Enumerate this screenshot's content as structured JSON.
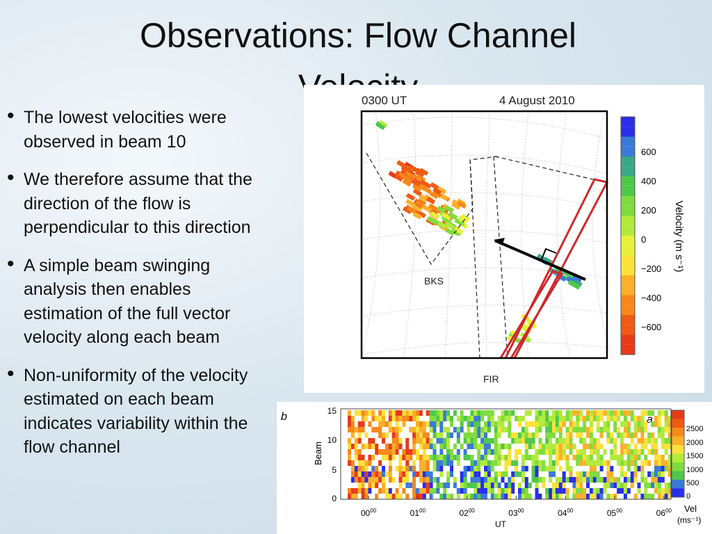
{
  "title": "Observations: Flow Channel Velocity",
  "bullets": [
    "The lowest velocities were observed in beam 10",
    "We therefore assume that the direction of the flow is perpendicular to this direction",
    "A simple beam swinging analysis then enables estimation of the full vector velocity along each beam",
    "Non-uniformity of the velocity estimated on each beam indicates variability within the flow channel"
  ],
  "map_figure": {
    "time": "0300 UT",
    "date": "4 August 2010",
    "station_labels": [
      "BKS",
      "FIR"
    ],
    "colorbar_ticks": [
      "600",
      "400",
      "200",
      "0",
      "−200",
      "−400",
      "−600"
    ],
    "colorbar_label": "Velocity (m s⁻¹)"
  },
  "rti_figure": {
    "panel_labels": [
      "b",
      "a"
    ],
    "y_label": "Beam",
    "y_ticks": [
      "15",
      "10",
      "5",
      "0"
    ],
    "x_ticks": [
      {
        "hour": "00",
        "min": "00"
      },
      {
        "hour": "01",
        "min": "00"
      },
      {
        "hour": "02",
        "min": "00"
      },
      {
        "hour": "03",
        "min": "00"
      },
      {
        "hour": "04",
        "min": "00"
      },
      {
        "hour": "05",
        "min": "00"
      },
      {
        "hour": "06",
        "min": "00"
      }
    ],
    "x_label": "UT",
    "colorbar_ticks": [
      "2500",
      "2000",
      "1500",
      "1000",
      "500",
      "0"
    ],
    "colorbar_label": [
      "Vel",
      "(ms⁻¹)"
    ]
  }
}
